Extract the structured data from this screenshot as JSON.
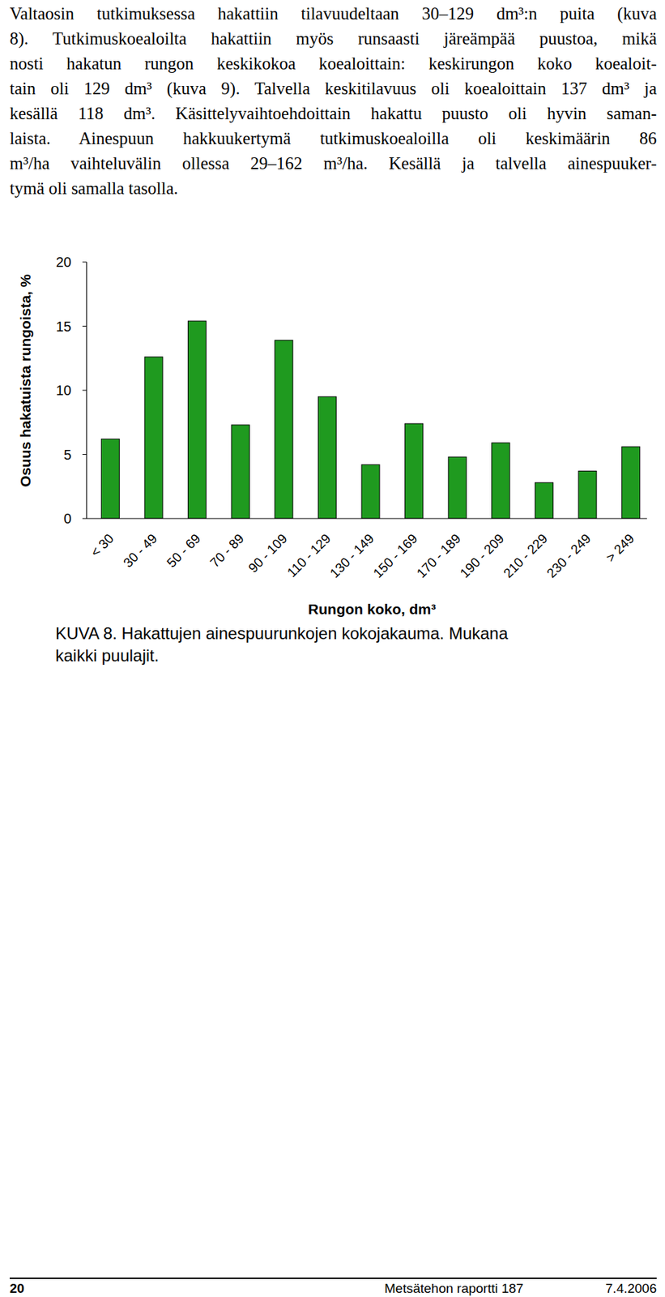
{
  "text": {
    "lines": [
      "Valtaosin tutkimuksessa hakattiin tilavuudeltaan 30–129 dm³:n puita (kuva",
      "8). Tutkimuskoealoilta hakattiin myös runsaasti järeämpää puustoa, mikä",
      "nosti hakatun rungon keskikokoa koealoittain: keskirungon koko koealoit-",
      "tain oli 129 dm³ (kuva 9). Talvella keskitilavuus oli koealoittain 137 dm³ ja",
      "kesällä 118 dm³. Käsittelyvaihtoehdoittain hakattu puusto oli hyvin saman-",
      "laista. Ainespuun hakkuukertymä tutkimuskoealoilla oli keskimäärin 86",
      "m³/ha vaihteluvälin ollessa 29–162 m³/ha. Kesällä ja talvella ainespuuker-",
      "tymä oli samalla tasolla."
    ]
  },
  "chart_data": {
    "type": "bar",
    "x_label": "Rungon koko, dm³",
    "y_label": "Osuus hakatuista rungoista, %",
    "categories": [
      "< 30",
      "30 - 49",
      "50 - 69",
      "70 - 89",
      "90 - 109",
      "110 - 129",
      "130 - 149",
      "150 - 169",
      "170 - 189",
      "190 - 209",
      "210 - 229",
      "230 - 249",
      "> 249"
    ],
    "values": [
      6.2,
      12.6,
      15.4,
      7.3,
      13.9,
      9.5,
      4.2,
      7.4,
      4.8,
      5.9,
      2.8,
      3.7,
      5.6
    ],
    "color": "#1f9a1f",
    "ylim": [
      0,
      20
    ],
    "yticks": [
      0,
      5,
      10,
      15,
      20
    ],
    "grid": false
  },
  "caption": {
    "lines": [
      "KUVA 8. Hakattujen ainespuurunkojen kokojakauma. Mukana",
      "kaikki puulajit."
    ]
  },
  "footer": {
    "page": "20",
    "report": "Metsätehon raportti 187",
    "date": "7.4.2006"
  }
}
